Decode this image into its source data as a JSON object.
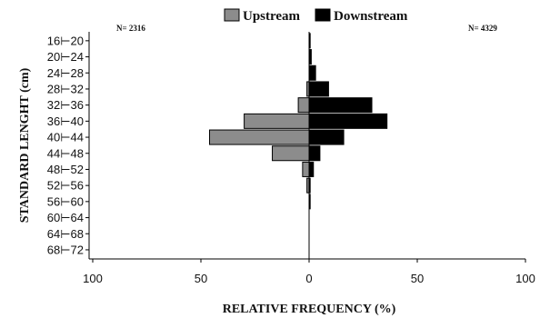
{
  "chart_data": {
    "type": "bar",
    "orientation": "horizontal-population-pyramid",
    "categories": [
      "16⊢20",
      "20⊢24",
      "24⊢28",
      "28⊢32",
      "32⊢36",
      "36⊢40",
      "40⊢44",
      "44⊢48",
      "48⊢52",
      "52⊢56",
      "56⊢60",
      "60⊢64",
      "64⊢68",
      "68⊢72"
    ],
    "series": [
      {
        "name": "Upstream",
        "color": "#8c8c8c",
        "side": "left",
        "values": [
          0,
          0,
          0,
          1,
          5,
          30,
          46,
          17,
          3,
          1,
          0,
          0,
          0,
          0
        ]
      },
      {
        "name": "Downstream",
        "color": "#000000",
        "side": "right",
        "values": [
          0.5,
          1,
          3,
          9,
          29,
          36,
          16,
          5,
          2,
          0.5,
          0.5,
          0,
          0,
          0
        ]
      }
    ],
    "xlabel": "RELATIVE FREQUENCY (%)",
    "ylabel": "STANDARD LENGHT (cm)",
    "xticks": [
      100,
      50,
      0,
      50,
      100
    ],
    "xlim": [
      -100,
      100
    ],
    "legend_position": "top-center",
    "annotations": {
      "left": "N= 2316",
      "right": "N= 4329"
    }
  }
}
